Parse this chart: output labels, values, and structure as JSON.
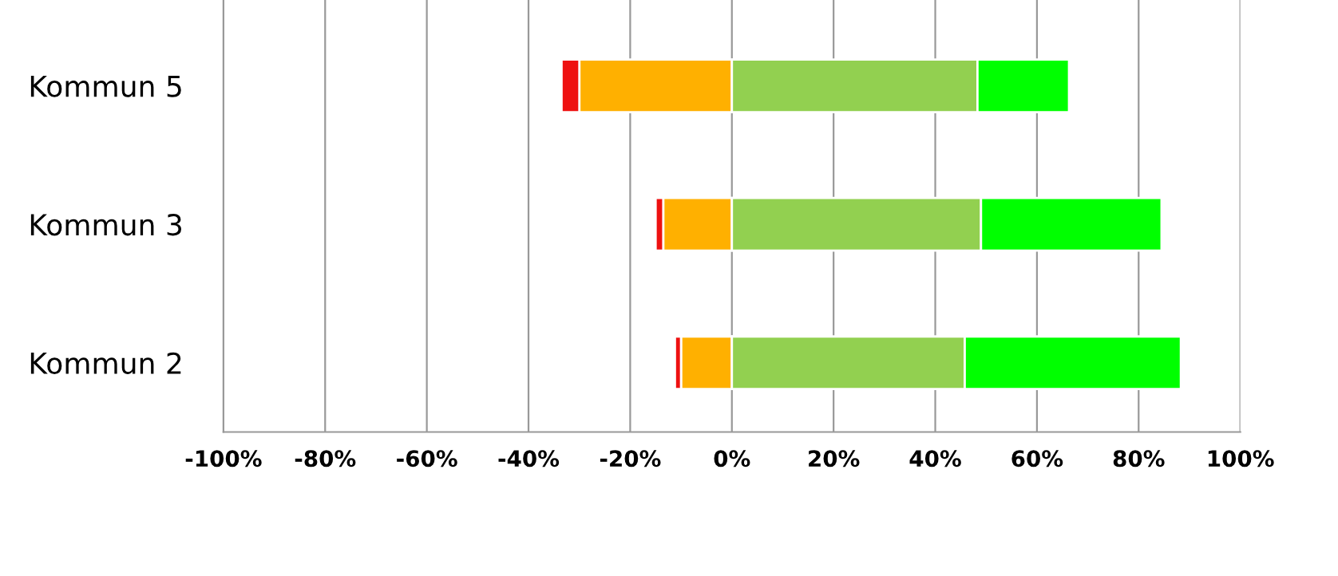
{
  "chart_data": {
    "type": "bar",
    "orientation": "horizontal",
    "stacked": true,
    "categories": [
      "Kommun 5",
      "Kommun 3",
      "Kommun 2"
    ],
    "series": [
      {
        "color": "#ffb000",
        "values": [
          -30,
          -13.5,
          -10
        ]
      },
      {
        "color": "#ee1111",
        "values": [
          -3.5,
          -1.5,
          -1.2
        ]
      },
      {
        "color": "#92d050",
        "values": [
          48.3,
          49,
          45.8
        ]
      },
      {
        "color": "#00ff00",
        "values": [
          18,
          35.5,
          42.5
        ]
      }
    ],
    "xlim": [
      -100,
      100
    ],
    "xticks": [
      {
        "value": -100,
        "label": "-100%"
      },
      {
        "value": -80,
        "label": "-80%"
      },
      {
        "value": -60,
        "label": "-60%"
      },
      {
        "value": -40,
        "label": "-40%"
      },
      {
        "value": -20,
        "label": "-20%"
      },
      {
        "value": 0,
        "label": "0%"
      },
      {
        "value": 20,
        "label": "20%"
      },
      {
        "value": 40,
        "label": "40%"
      },
      {
        "value": 60,
        "label": "60%"
      },
      {
        "value": 80,
        "label": "80%"
      },
      {
        "value": 100,
        "label": "100%"
      }
    ],
    "grid": "x"
  }
}
